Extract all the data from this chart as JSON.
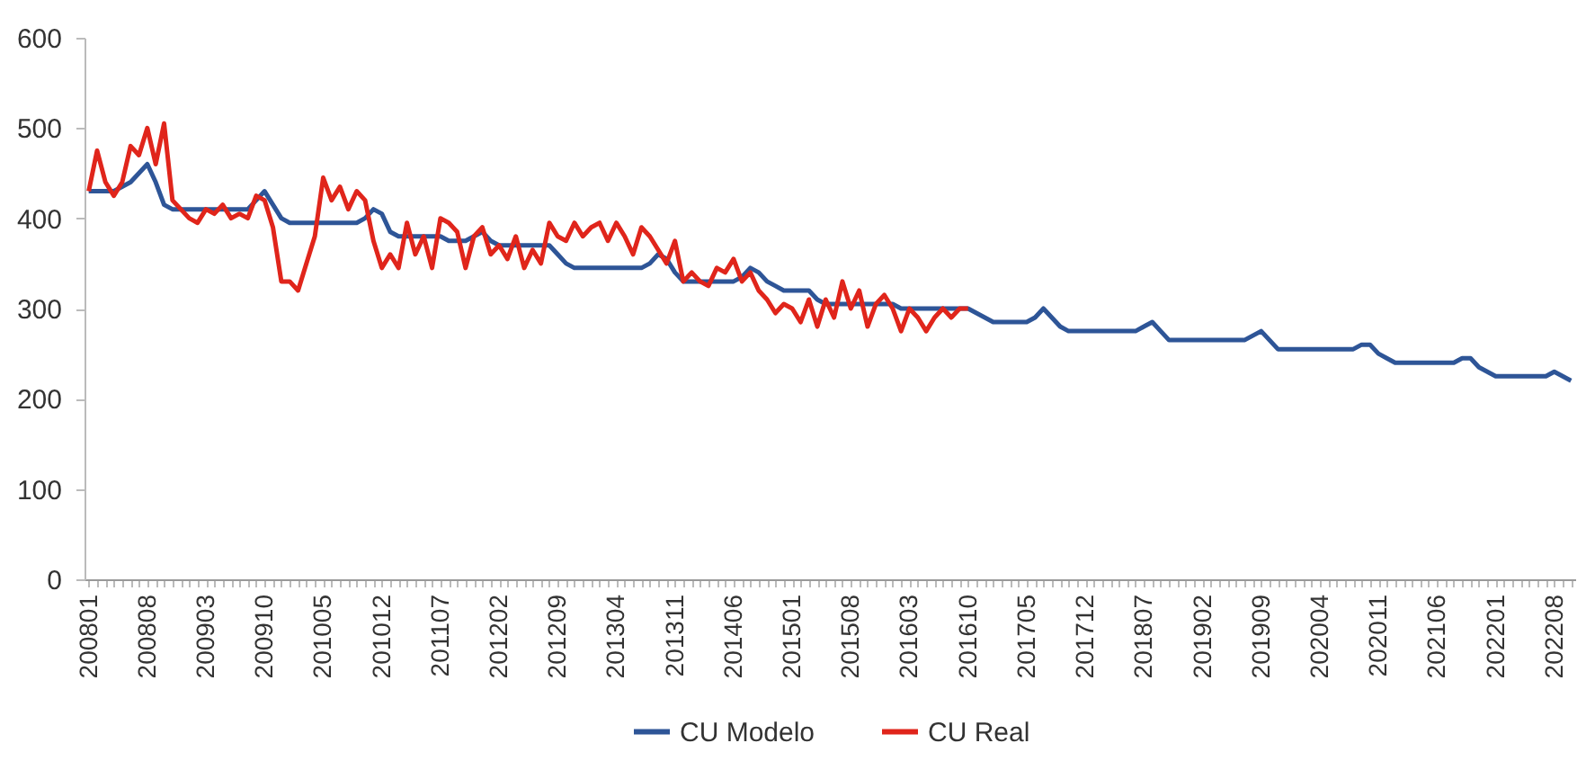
{
  "chart_data": {
    "type": "line",
    "categories": [
      "200801",
      null,
      null,
      null,
      null,
      null,
      null,
      "200808",
      null,
      null,
      null,
      null,
      null,
      null,
      "200903",
      null,
      null,
      null,
      null,
      null,
      null,
      "200910",
      null,
      null,
      null,
      null,
      null,
      null,
      "201005",
      null,
      null,
      null,
      null,
      null,
      null,
      "201012",
      null,
      null,
      null,
      null,
      null,
      null,
      "201107",
      null,
      null,
      null,
      null,
      null,
      null,
      "201202",
      null,
      null,
      null,
      null,
      null,
      null,
      "201209",
      null,
      null,
      null,
      null,
      null,
      null,
      "201304",
      null,
      null,
      null,
      null,
      null,
      null,
      "201311",
      null,
      null,
      null,
      null,
      null,
      null,
      "201406",
      null,
      null,
      null,
      null,
      null,
      null,
      "201501",
      null,
      null,
      null,
      null,
      null,
      null,
      "201508",
      null,
      null,
      null,
      null,
      null,
      null,
      "201603",
      null,
      null,
      null,
      null,
      null,
      null,
      "201610",
      null,
      null,
      null,
      null,
      null,
      null,
      "201705",
      null,
      null,
      null,
      null,
      null,
      null,
      "201712",
      null,
      null,
      null,
      null,
      null,
      null,
      "201807",
      null,
      null,
      null,
      null,
      null,
      null,
      "201902",
      null,
      null,
      null,
      null,
      null,
      null,
      "201909",
      null,
      null,
      null,
      null,
      null,
      null,
      "202004",
      null,
      null,
      null,
      null,
      null,
      null,
      "202011",
      null,
      null,
      null,
      null,
      null,
      null,
      "202106",
      null,
      null,
      null,
      null,
      null,
      null,
      "202201",
      null,
      null,
      null,
      null,
      null,
      null,
      "202208",
      null,
      null
    ],
    "series": [
      {
        "name": "CU Modelo",
        "color": "#2e5597",
        "values": [
          430,
          430,
          430,
          430,
          435,
          440,
          450,
          460,
          440,
          415,
          410,
          410,
          410,
          410,
          410,
          410,
          410,
          410,
          410,
          410,
          420,
          430,
          415,
          400,
          395,
          395,
          395,
          395,
          395,
          395,
          395,
          395,
          395,
          400,
          410,
          405,
          385,
          380,
          380,
          380,
          380,
          380,
          380,
          375,
          375,
          375,
          380,
          385,
          375,
          370,
          370,
          370,
          370,
          370,
          370,
          370,
          360,
          350,
          345,
          345,
          345,
          345,
          345,
          345,
          345,
          345,
          345,
          350,
          360,
          355,
          340,
          330,
          330,
          330,
          330,
          330,
          330,
          330,
          335,
          345,
          340,
          330,
          325,
          320,
          320,
          320,
          320,
          310,
          305,
          305,
          305,
          305,
          305,
          305,
          305,
          305,
          305,
          300,
          300,
          300,
          300,
          300,
          300,
          300,
          300,
          300,
          295,
          290,
          285,
          285,
          285,
          285,
          285,
          290,
          300,
          290,
          280,
          275,
          275,
          275,
          275,
          275,
          275,
          275,
          275,
          275,
          280,
          285,
          275,
          265,
          265,
          265,
          265,
          265,
          265,
          265,
          265,
          265,
          265,
          270,
          275,
          265,
          255,
          255,
          255,
          255,
          255,
          255,
          255,
          255,
          255,
          255,
          260,
          260,
          250,
          245,
          240,
          240,
          240,
          240,
          240,
          240,
          240,
          240,
          245,
          245,
          235,
          230,
          225,
          225,
          225,
          225,
          225,
          225,
          225,
          230,
          225,
          220
        ]
      },
      {
        "name": "CU Real",
        "color": "#e0251b",
        "values": [
          430,
          475,
          440,
          425,
          440,
          480,
          470,
          500,
          460,
          505,
          420,
          410,
          400,
          395,
          410,
          405,
          415,
          400,
          405,
          400,
          425,
          420,
          390,
          330,
          330,
          320,
          350,
          380,
          445,
          420,
          435,
          410,
          430,
          420,
          375,
          345,
          360,
          345,
          395,
          360,
          380,
          345,
          400,
          395,
          385,
          345,
          380,
          390,
          360,
          370,
          355,
          380,
          345,
          365,
          350,
          395,
          380,
          375,
          395,
          380,
          390,
          395,
          375,
          395,
          380,
          360,
          390,
          380,
          365,
          350,
          375,
          330,
          340,
          330,
          325,
          345,
          340,
          355,
          330,
          340,
          320,
          310,
          295,
          305,
          300,
          285,
          310,
          280,
          310,
          290,
          330,
          300,
          320,
          280,
          305,
          315,
          300,
          275,
          300,
          290,
          275,
          290,
          300,
          290,
          300,
          300,
          null,
          null,
          null,
          null,
          null,
          null,
          null,
          null,
          null,
          null,
          null,
          null,
          null,
          null,
          null,
          null,
          null,
          null,
          null,
          null,
          null,
          null,
          null,
          null,
          null,
          null,
          null,
          null,
          null,
          null,
          null,
          null,
          null,
          null,
          null,
          null,
          null,
          null,
          null,
          null,
          null,
          null,
          null,
          null,
          null,
          null,
          null,
          null,
          null,
          null,
          null,
          null,
          null,
          null,
          null,
          null,
          null,
          null,
          null,
          null,
          null,
          null,
          null,
          null,
          null,
          null,
          null,
          null,
          null,
          null,
          null,
          null
        ]
      }
    ],
    "ylim": [
      0,
      600
    ],
    "yticks": [
      0,
      100,
      200,
      300,
      400,
      500,
      600
    ],
    "legend": "bottom",
    "grid": false
  }
}
